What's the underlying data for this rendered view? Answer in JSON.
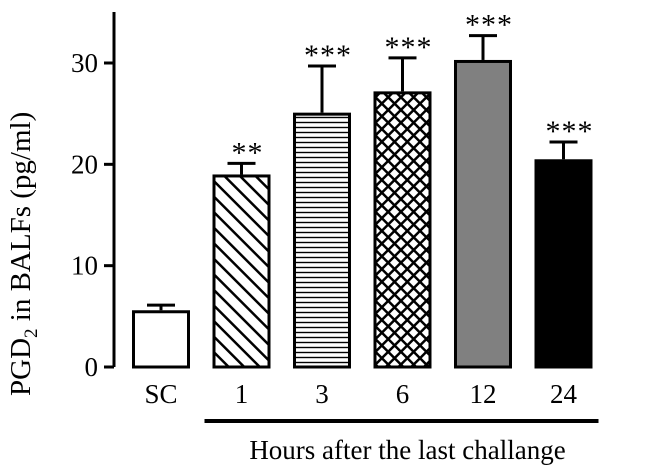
{
  "chart_data": {
    "type": "bar",
    "categories": [
      "SC",
      "1",
      "3",
      "6",
      "12",
      "24"
    ],
    "values": [
      5.6,
      19.0,
      25.1,
      27.2,
      30.3,
      20.5
    ],
    "errors": [
      0.5,
      1.1,
      4.6,
      3.3,
      2.4,
      1.7
    ],
    "significance": [
      "",
      "**",
      "***",
      "***",
      "***",
      "***"
    ],
    "fills": [
      "white",
      "diagonal-hatch",
      "horizontal-lines",
      "crosshatch",
      "gray",
      "black"
    ],
    "colors": {
      "gray": "#808080",
      "black": "#000000",
      "white": "#ffffff"
    },
    "ylim": [
      0,
      35
    ],
    "yticks": [
      0,
      10,
      20,
      30
    ],
    "ylabel": {
      "main": "PGD",
      "sub": "2",
      "rest": " in BALFs (pg/ml)"
    },
    "xlabel": "Hours after the last challange",
    "xlabel_span": [
      "1",
      "24"
    ],
    "title": ""
  }
}
